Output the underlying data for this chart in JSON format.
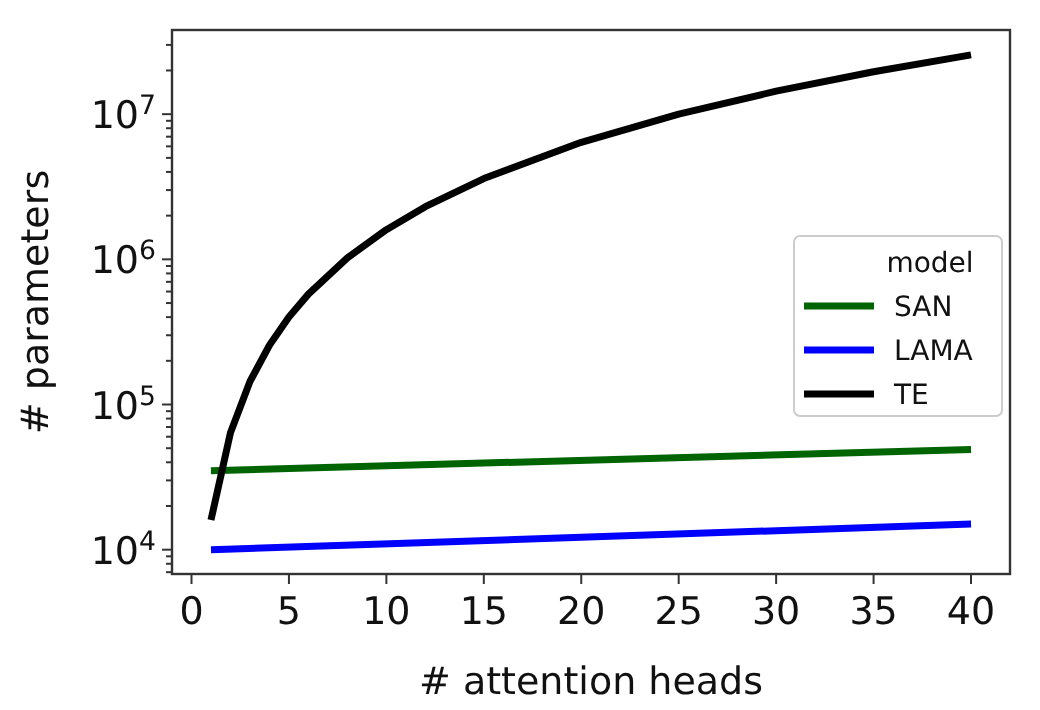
{
  "chart_data": {
    "type": "line",
    "xlabel": "# attention heads",
    "ylabel": "# parameters",
    "legend_title": "model",
    "legend": "right",
    "log": "y",
    "grid": false,
    "xlim": [
      -1,
      42
    ],
    "xticks": [
      0,
      5,
      10,
      15,
      20,
      25,
      30,
      35,
      40
    ],
    "ylim": [
      6800,
      38000000
    ],
    "yticks": [
      {
        "value": 7000,
        "label": null
      },
      {
        "value": 8000,
        "label": null
      },
      {
        "value": 9000,
        "label": null
      },
      {
        "value": 10000,
        "label": "10$^{4}$"
      },
      {
        "value": 20000,
        "label": null
      },
      {
        "value": 30000,
        "label": null
      },
      {
        "value": 40000,
        "label": null
      },
      {
        "value": 50000,
        "label": null
      },
      {
        "value": 60000,
        "label": null
      },
      {
        "value": 70000,
        "label": null
      },
      {
        "value": 80000,
        "label": null
      },
      {
        "value": 90000,
        "label": null
      },
      {
        "value": 100000,
        "label": "10$^{5}$"
      },
      {
        "value": 200000,
        "label": null
      },
      {
        "value": 300000,
        "label": null
      },
      {
        "value": 400000,
        "label": null
      },
      {
        "value": 500000,
        "label": null
      },
      {
        "value": 600000,
        "label": null
      },
      {
        "value": 700000,
        "label": null
      },
      {
        "value": 800000,
        "label": null
      },
      {
        "value": 900000,
        "label": null
      },
      {
        "value": 1000000,
        "label": "10$^{6}$"
      },
      {
        "value": 2000000,
        "label": null
      },
      {
        "value": 3000000,
        "label": null
      },
      {
        "value": 4000000,
        "label": null
      },
      {
        "value": 5000000,
        "label": null
      },
      {
        "value": 6000000,
        "label": null
      },
      {
        "value": 7000000,
        "label": null
      },
      {
        "value": 8000000,
        "label": null
      },
      {
        "value": 9000000,
        "label": null
      },
      {
        "value": 10000000,
        "label": "10$^{7}$"
      },
      {
        "value": 20000000,
        "label": null
      },
      {
        "value": 30000000,
        "label": null
      }
    ],
    "marker": "none",
    "line_style": "solid",
    "series": [
      {
        "name": "SAN",
        "color": "#006400",
        "x": [
          1,
          40
        ],
        "values": [
          35000,
          49000
        ]
      },
      {
        "name": "LAMA",
        "color": "#0000ff",
        "x": [
          1,
          40
        ],
        "values": [
          10000,
          15000
        ]
      },
      {
        "name": "TE",
        "color": "#000000",
        "x": [
          1,
          2,
          3,
          4,
          5,
          6,
          8,
          10,
          12,
          15,
          20,
          25,
          30,
          35,
          40
        ],
        "values": [
          16000,
          64000,
          144000,
          256000,
          400000,
          576000,
          1024000,
          1600000,
          2304000,
          3600000,
          6400000,
          10000000,
          14400000,
          19600000,
          25600000
        ]
      }
    ]
  }
}
